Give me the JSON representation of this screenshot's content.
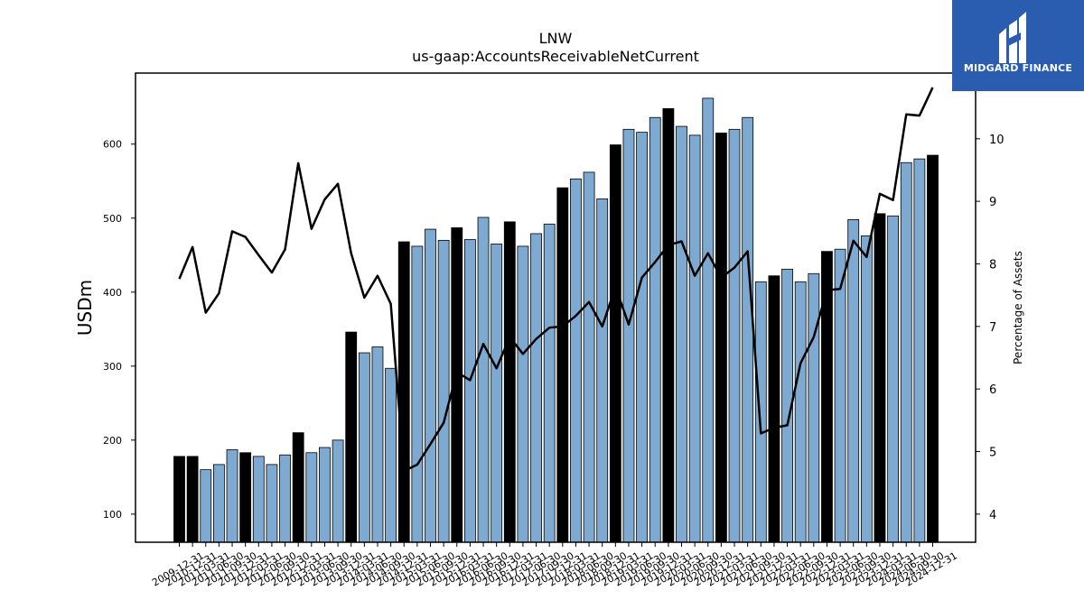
{
  "logo": {
    "text": "MIDGARD FINANCE",
    "background": "#2a5db0"
  },
  "chart_data": {
    "type": "bar",
    "title": "LNW",
    "subtitle": "us-gaap:AccountsReceivableNetCurrent",
    "ylabel": "USDm",
    "y2label": "Percentage of Assets",
    "ylim": [
      62,
      696
    ],
    "y2lim": [
      3.55,
      11.05
    ],
    "yticks": [
      100,
      200,
      300,
      400,
      500,
      600
    ],
    "y2ticks": [
      4,
      5,
      6,
      7,
      8,
      9,
      10
    ],
    "bar_colors": {
      "annual": "#000000",
      "quarterly": "#7eaad1"
    },
    "line_color": "#000000",
    "categories": [
      "2009-12-31",
      "2010-12-31",
      "2011-03-31",
      "2011-06-30",
      "2011-09-30",
      "2011-12-31",
      "2012-03-31",
      "2012-06-30",
      "2012-09-30",
      "2012-12-31",
      "2013-03-31",
      "2013-06-30",
      "2013-09-30",
      "2013-12-31",
      "2014-03-31",
      "2014-06-30",
      "2014-09-30",
      "2014-12-31",
      "2015-03-31",
      "2015-06-30",
      "2015-09-30",
      "2015-12-31",
      "2016-03-31",
      "2016-06-30",
      "2016-09-30",
      "2016-12-31",
      "2017-03-31",
      "2017-06-30",
      "2017-09-30",
      "2017-12-31",
      "2018-03-31",
      "2018-06-30",
      "2018-09-30",
      "2018-12-31",
      "2019-03-31",
      "2019-06-30",
      "2019-09-30",
      "2019-12-31",
      "2020-03-31",
      "2020-06-30",
      "2020-09-30",
      "2020-12-31",
      "2021-03-31",
      "2021-06-30",
      "2021-09-30",
      "2021-12-31",
      "2022-03-31",
      "2022-06-30",
      "2022-09-30",
      "2022-12-31",
      "2023-03-31",
      "2023-06-30",
      "2023-09-30",
      "2023-12-31",
      "2024-03-31",
      "2024-06-30",
      "2024-09-30",
      "2024-12-31"
    ],
    "series": [
      {
        "type": "bar",
        "values": [
          178,
          178,
          160,
          167,
          187,
          183,
          178,
          167,
          180,
          210,
          183,
          190,
          200,
          346,
          318,
          326,
          297,
          468,
          462,
          485,
          470,
          487,
          471,
          501,
          465,
          495,
          462,
          479,
          492,
          541,
          553,
          562,
          526,
          599,
          620,
          616,
          636,
          648,
          624,
          612,
          662,
          615,
          620,
          636,
          414,
          422,
          431,
          414,
          425,
          455,
          458,
          498,
          476,
          506,
          503,
          575,
          580,
          585
        ],
        "annual": [
          true,
          true,
          false,
          false,
          false,
          true,
          false,
          false,
          false,
          true,
          false,
          false,
          false,
          true,
          false,
          false,
          false,
          true,
          false,
          false,
          false,
          true,
          false,
          false,
          false,
          true,
          false,
          false,
          false,
          true,
          false,
          false,
          false,
          true,
          false,
          false,
          false,
          true,
          false,
          false,
          false,
          true,
          false,
          false,
          false,
          true,
          false,
          false,
          false,
          true,
          false,
          false,
          false,
          true,
          false,
          false,
          false,
          true
        ]
      },
      {
        "type": "line",
        "axis": "right",
        "values": [
          7.76,
          8.27,
          7.22,
          7.53,
          8.52,
          8.43,
          8.14,
          7.86,
          8.23,
          9.61,
          8.56,
          9.03,
          9.28,
          8.17,
          7.46,
          7.81,
          7.36,
          4.69,
          4.79,
          5.12,
          5.46,
          6.27,
          6.14,
          6.72,
          6.33,
          6.83,
          6.56,
          6.8,
          6.98,
          7.0,
          7.17,
          7.39,
          7.0,
          7.63,
          7.03,
          7.78,
          8.03,
          8.3,
          8.36,
          7.81,
          8.17,
          7.78,
          7.94,
          8.2,
          5.29,
          5.38,
          5.42,
          6.41,
          6.83,
          7.58,
          7.6,
          8.37,
          8.11,
          9.12,
          9.02,
          10.39,
          10.37,
          10.82
        ]
      }
    ]
  }
}
